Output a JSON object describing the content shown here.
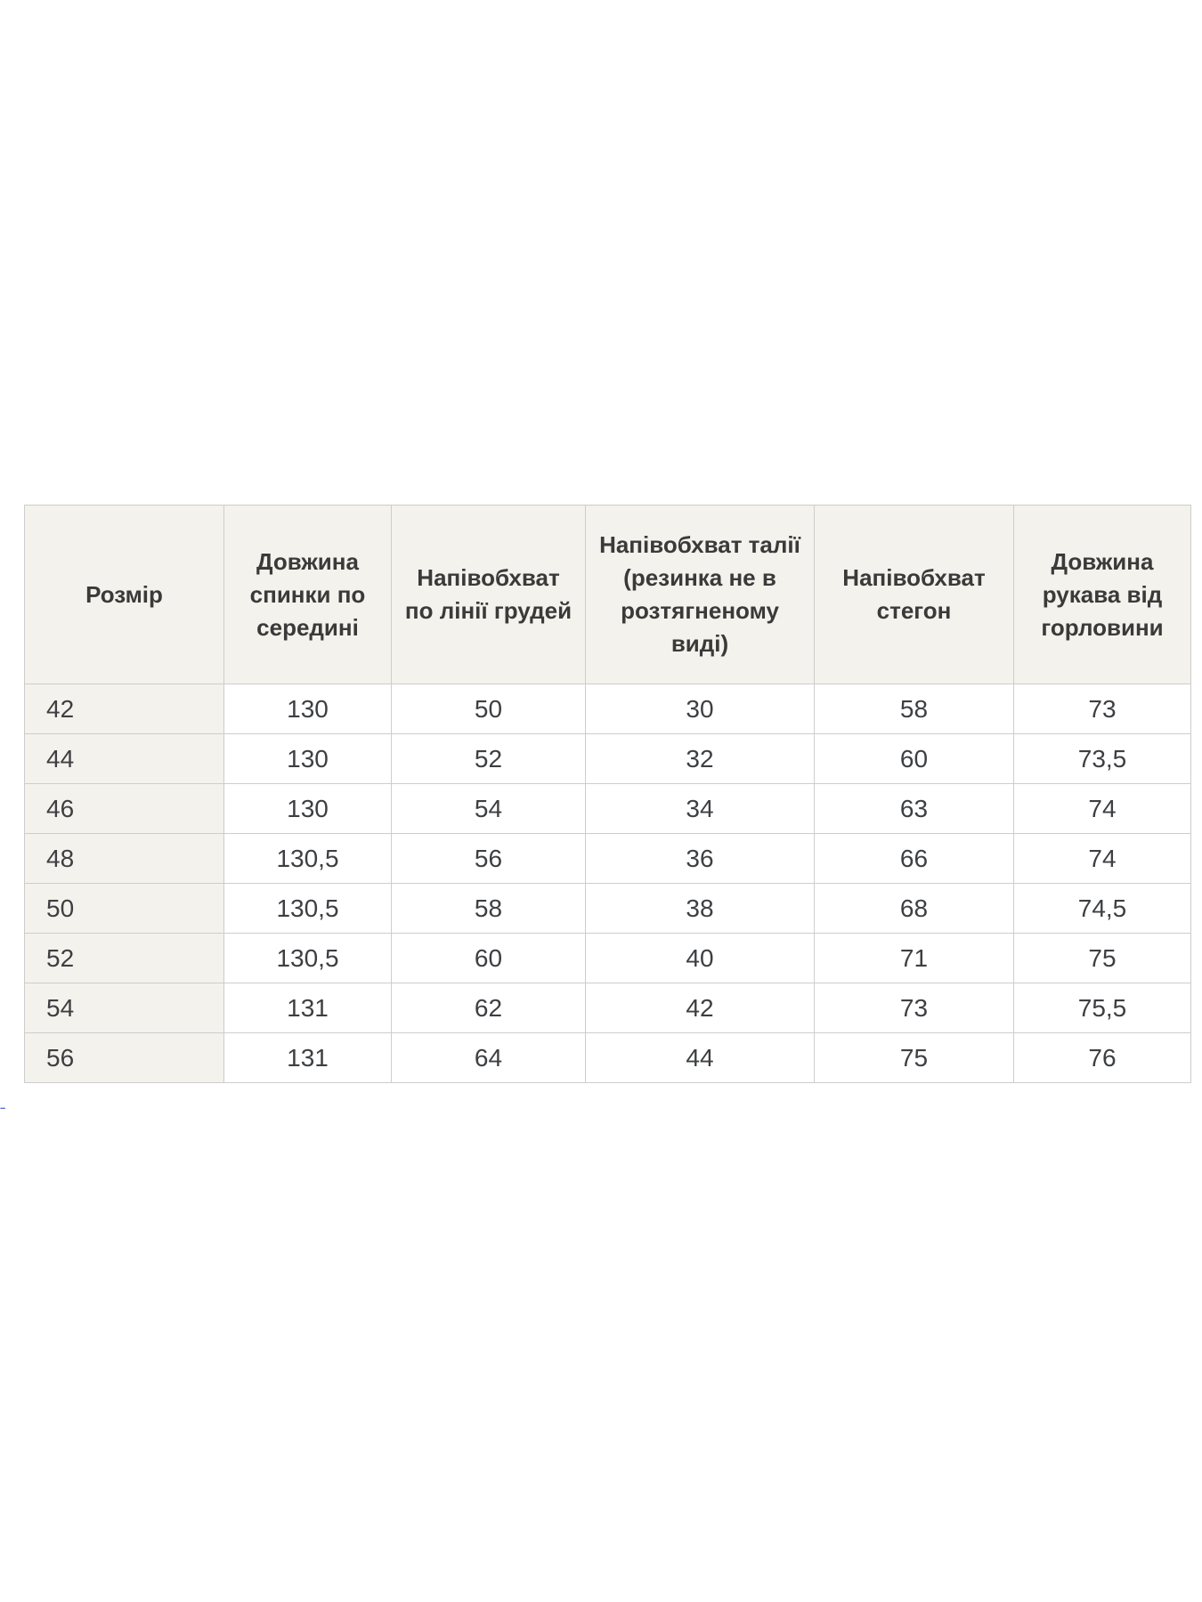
{
  "table": {
    "columns": [
      {
        "label": "Розмір"
      },
      {
        "label": "Довжина спинки по середині"
      },
      {
        "label": "Напівобхват по лінії грудей"
      },
      {
        "label": "Напівобхват талії (резинка не в розтягненому виді)"
      },
      {
        "label": "Напівобхват стегон"
      },
      {
        "label": "Довжина рукава від горловини"
      }
    ],
    "rows": [
      [
        "42",
        "130",
        "50",
        "30",
        "58",
        "73"
      ],
      [
        "44",
        "130",
        "52",
        "32",
        "60",
        "73,5"
      ],
      [
        "46",
        "130",
        "54",
        "34",
        "63",
        "74"
      ],
      [
        "48",
        "130,5",
        "56",
        "36",
        "66",
        "74"
      ],
      [
        "50",
        "130,5",
        "58",
        "38",
        "68",
        "74,5"
      ],
      [
        "52",
        "130,5",
        "60",
        "40",
        "71",
        "75"
      ],
      [
        "54",
        "131",
        "62",
        "42",
        "73",
        "75,5"
      ],
      [
        "56",
        "131",
        "64",
        "44",
        "75",
        "76"
      ]
    ]
  },
  "stray_mark": "--",
  "colors": {
    "header-bg": "#f4f2ec",
    "cell-bg": "#ffffff",
    "border": "#cdcdcd",
    "header-text": "#3a3a3a",
    "cell-text": "#3d3f42"
  }
}
